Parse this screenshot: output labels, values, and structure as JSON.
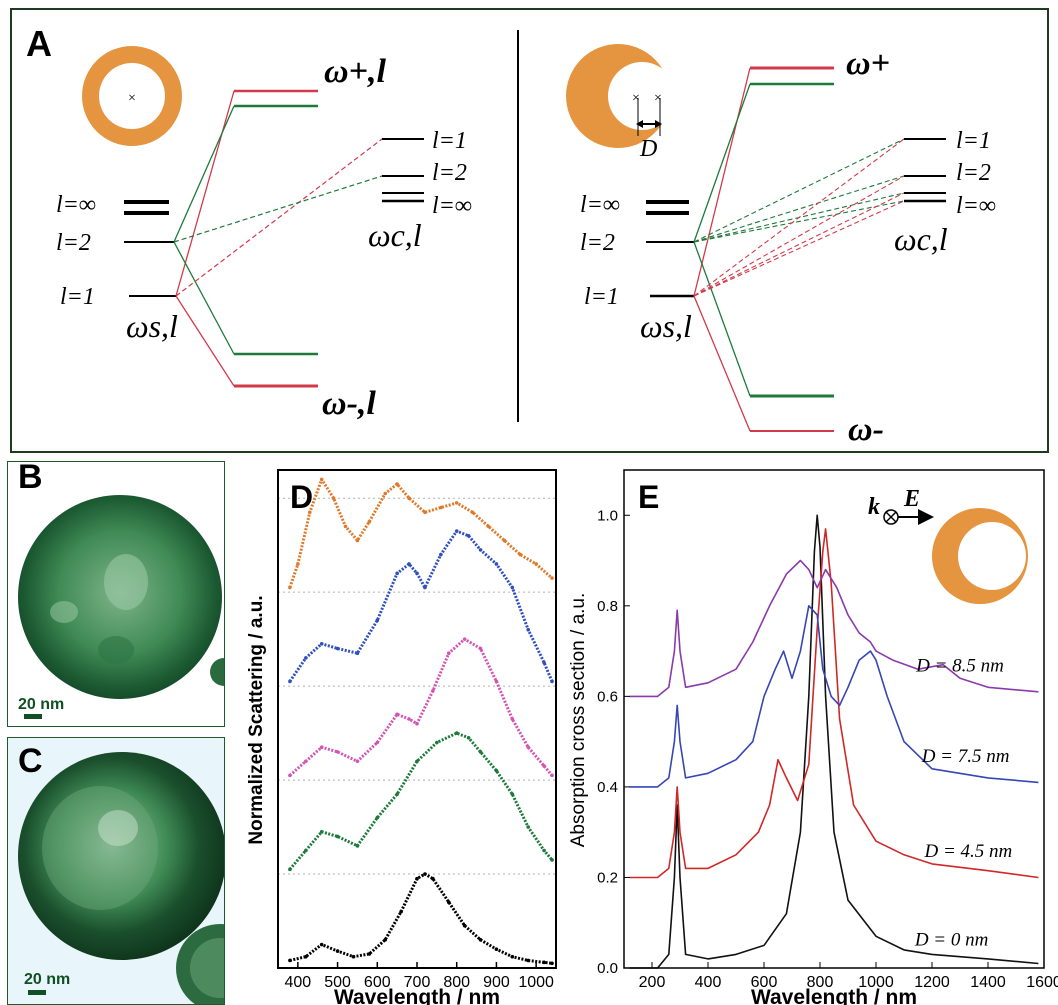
{
  "panel_a": {
    "label": "A",
    "left_diagram": {
      "top_level": "ω+,l",
      "bottom_level": "ω-,l",
      "sphere_level": "ωs,l",
      "cavity_level": "ωc,l",
      "sphere_labels": [
        "l=∞",
        "l=2",
        "l=1"
      ],
      "cavity_labels": [
        "l=1",
        "l=2",
        "l=∞"
      ]
    },
    "right_diagram": {
      "top_level": "ω+",
      "bottom_level": "ω-",
      "sphere_level": "ωs,l",
      "cavity_level": "ωc,l",
      "sphere_labels": [
        "l=∞",
        "l=2",
        "l=1"
      ],
      "cavity_labels": [
        "l=1",
        "l=2",
        "l=∞"
      ],
      "offset_label": "D"
    },
    "colors": {
      "green": "#1e7a3a",
      "red": "#d23a4a",
      "orange": "#e59440"
    }
  },
  "panel_b": {
    "label": "B",
    "scale_bar": "20 nm"
  },
  "panel_c": {
    "label": "C",
    "scale_bar": "20 nm"
  },
  "chart_data": [
    {
      "panel": "D",
      "type": "scatter",
      "xlabel": "Wavelength / nm",
      "ylabel": "Normalized Scattering / a.u.",
      "xlim": [
        350,
        1050
      ],
      "ylim": [
        0,
        5.3
      ],
      "x_ticks": [
        400,
        500,
        600,
        700,
        800,
        900,
        1000
      ],
      "grid": "horizontal dashed",
      "series": [
        {
          "color": "#000000",
          "x": [
            380,
            420,
            460,
            500,
            540,
            580,
            620,
            660,
            700,
            720,
            740,
            780,
            820,
            860,
            900,
            940,
            980,
            1020,
            1040
          ],
          "y": [
            0.08,
            0.12,
            0.25,
            0.18,
            0.12,
            0.15,
            0.3,
            0.6,
            0.95,
            1.0,
            0.95,
            0.7,
            0.45,
            0.3,
            0.2,
            0.12,
            0.08,
            0.06,
            0.05
          ]
        },
        {
          "color": "#1e7a3a",
          "x": [
            380,
            420,
            460,
            500,
            550,
            600,
            650,
            700,
            750,
            800,
            830,
            860,
            900,
            940,
            980,
            1020,
            1040
          ],
          "y": [
            1.05,
            1.25,
            1.45,
            1.4,
            1.3,
            1.6,
            1.85,
            2.2,
            2.4,
            2.5,
            2.45,
            2.3,
            2.1,
            1.85,
            1.5,
            1.25,
            1.15
          ]
        },
        {
          "color": "#d454b4",
          "x": [
            380,
            420,
            460,
            500,
            550,
            600,
            650,
            680,
            700,
            740,
            780,
            820,
            860,
            900,
            940,
            980,
            1020,
            1040
          ],
          "y": [
            2.05,
            2.2,
            2.35,
            2.3,
            2.2,
            2.4,
            2.7,
            2.65,
            2.6,
            2.95,
            3.35,
            3.5,
            3.4,
            3.05,
            2.65,
            2.35,
            2.15,
            2.05
          ]
        },
        {
          "color": "#3050c0",
          "x": [
            380,
            420,
            460,
            500,
            550,
            600,
            650,
            680,
            700,
            720,
            760,
            800,
            830,
            860,
            900,
            940,
            980,
            1020,
            1040
          ],
          "y": [
            3.05,
            3.3,
            3.45,
            3.4,
            3.35,
            3.7,
            4.2,
            4.3,
            4.2,
            4.05,
            4.4,
            4.65,
            4.6,
            4.45,
            4.3,
            4.05,
            3.6,
            3.25,
            3.05
          ]
        },
        {
          "color": "#e07a2a",
          "x": [
            380,
            400,
            430,
            460,
            490,
            520,
            550,
            580,
            620,
            650,
            680,
            720,
            760,
            800,
            840,
            880,
            920,
            960,
            1000,
            1040
          ],
          "y": [
            4.05,
            4.3,
            4.85,
            5.2,
            5.0,
            4.7,
            4.55,
            4.75,
            5.05,
            5.15,
            5.0,
            4.85,
            4.9,
            4.95,
            4.85,
            4.7,
            4.55,
            4.4,
            4.3,
            4.15
          ]
        }
      ]
    },
    {
      "panel": "E",
      "type": "line",
      "xlabel": "Wavelength / nm",
      "ylabel": "Absorption cross section / a.u.",
      "xlim": [
        100,
        1600
      ],
      "ylim": [
        0,
        1.1
      ],
      "x_ticks": [
        200,
        400,
        600,
        800,
        1000,
        1200,
        1400,
        1600
      ],
      "y_ticks": [
        0.0,
        0.2,
        0.4,
        0.6,
        0.8,
        1.0
      ],
      "inset_labels": {
        "k": "k",
        "E": "E"
      },
      "series": [
        {
          "name": "D = 0 nm",
          "color": "#111111",
          "x": [
            120,
            220,
            260,
            280,
            290,
            300,
            320,
            400,
            500,
            600,
            680,
            730,
            760,
            780,
            790,
            800,
            820,
            850,
            900,
            1000,
            1100,
            1200,
            1400,
            1580
          ],
          "y": [
            0.0,
            0.0,
            0.03,
            0.2,
            0.36,
            0.2,
            0.03,
            0.02,
            0.03,
            0.05,
            0.12,
            0.3,
            0.6,
            0.92,
            1.0,
            0.93,
            0.6,
            0.3,
            0.15,
            0.07,
            0.04,
            0.03,
            0.02,
            0.01
          ]
        },
        {
          "name": "D = 4.5 nm",
          "color": "#d02828",
          "x": [
            120,
            220,
            260,
            280,
            290,
            300,
            320,
            400,
            500,
            580,
            620,
            650,
            680,
            720,
            760,
            790,
            810,
            820,
            840,
            870,
            920,
            1000,
            1100,
            1200,
            1400,
            1580
          ],
          "y": [
            0.2,
            0.2,
            0.22,
            0.3,
            0.4,
            0.3,
            0.22,
            0.22,
            0.25,
            0.3,
            0.36,
            0.46,
            0.42,
            0.37,
            0.45,
            0.75,
            0.92,
            0.97,
            0.85,
            0.55,
            0.36,
            0.28,
            0.25,
            0.23,
            0.215,
            0.2
          ]
        },
        {
          "name": "D = 7.5 nm",
          "color": "#3646b4",
          "x": [
            120,
            220,
            260,
            280,
            290,
            300,
            320,
            400,
            500,
            560,
            600,
            640,
            670,
            700,
            730,
            760,
            790,
            810,
            840,
            870,
            900,
            940,
            980,
            1000,
            1040,
            1100,
            1200,
            1400,
            1580
          ],
          "y": [
            0.4,
            0.4,
            0.42,
            0.5,
            0.58,
            0.5,
            0.42,
            0.43,
            0.46,
            0.5,
            0.6,
            0.66,
            0.7,
            0.64,
            0.7,
            0.8,
            0.78,
            0.66,
            0.6,
            0.58,
            0.62,
            0.68,
            0.7,
            0.68,
            0.6,
            0.5,
            0.44,
            0.42,
            0.41
          ]
        },
        {
          "name": "D = 8.5 nm",
          "color": "#8a3aaa",
          "x": [
            120,
            220,
            260,
            280,
            290,
            300,
            320,
            400,
            500,
            560,
            620,
            680,
            730,
            760,
            790,
            820,
            860,
            900,
            940,
            980,
            1000,
            1060,
            1150,
            1240,
            1300,
            1400,
            1580
          ],
          "y": [
            0.6,
            0.6,
            0.62,
            0.7,
            0.79,
            0.7,
            0.62,
            0.63,
            0.66,
            0.72,
            0.8,
            0.87,
            0.9,
            0.88,
            0.84,
            0.88,
            0.84,
            0.78,
            0.74,
            0.72,
            0.7,
            0.68,
            0.66,
            0.67,
            0.64,
            0.62,
            0.61
          ]
        }
      ]
    }
  ]
}
